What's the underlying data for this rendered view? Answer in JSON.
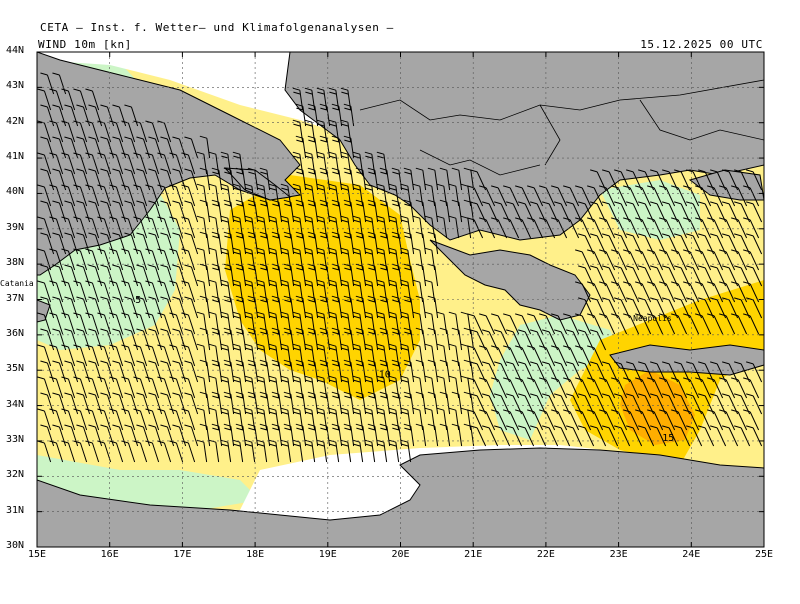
{
  "header": {
    "title": "CETA – Inst. f. Wetter– und Klimafolgenanalysen –",
    "field": "WIND 10m [kn]",
    "date": "15.12.2025 00 UTC"
  },
  "axes": {
    "lat_labels": [
      "44N",
      "43N",
      "42N",
      "41N",
      "40N",
      "39N",
      "38N",
      "37N",
      "36N",
      "35N",
      "34N",
      "33N",
      "32N",
      "31N",
      "30N"
    ],
    "lon_labels": [
      "15E",
      "16E",
      "17E",
      "18E",
      "19E",
      "20E",
      "21E",
      "22E",
      "23E",
      "24E",
      "25E"
    ],
    "lat_range": [
      30,
      44
    ],
    "lon_range": [
      15,
      25
    ]
  },
  "places": [
    {
      "name": "Catania",
      "lon": 15.0,
      "lat": 37.5
    },
    {
      "name": "Neapolis",
      "lon": 23.2,
      "lat": 36.5
    }
  ],
  "contour_labels": [
    {
      "text": "5",
      "lon": 16.35,
      "lat": 36.9
    },
    {
      "text": "10",
      "lon": 19.7,
      "lat": 34.8
    },
    {
      "text": "15",
      "lon": 23.6,
      "lat": 33.0
    }
  ],
  "colors": {
    "land": "#a6a6a6",
    "sea_white": "#ffffff",
    "wind_0_5": "#ccf5c6",
    "wind_5_10": "#fff08a",
    "wind_10_15": "#ffd400",
    "wind_15_20": "#ffae00",
    "barb": "#000000"
  },
  "legend_bins_kn": [
    5,
    10,
    15
  ]
}
